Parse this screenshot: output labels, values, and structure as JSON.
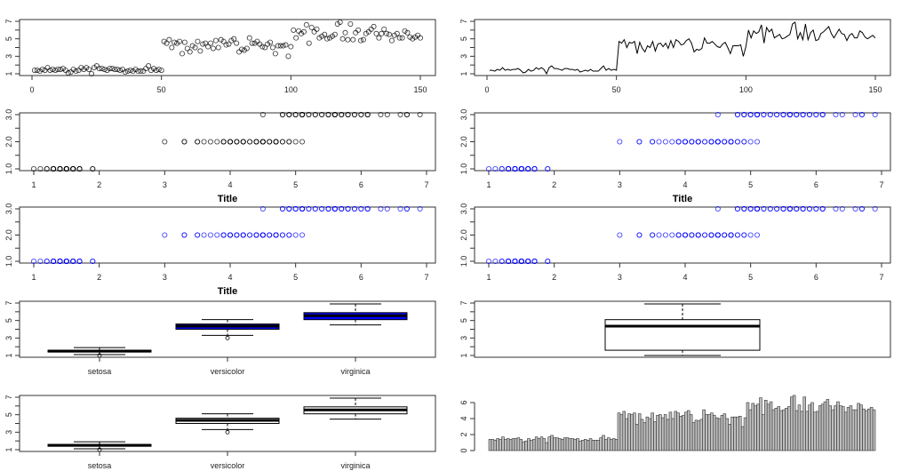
{
  "dataset": {
    "petal_length": [
      1.4,
      1.4,
      1.3,
      1.5,
      1.4,
      1.7,
      1.4,
      1.5,
      1.4,
      1.5,
      1.5,
      1.6,
      1.4,
      1.1,
      1.2,
      1.5,
      1.3,
      1.4,
      1.7,
      1.5,
      1.7,
      1.5,
      1.0,
      1.7,
      1.9,
      1.6,
      1.6,
      1.5,
      1.4,
      1.6,
      1.6,
      1.5,
      1.5,
      1.4,
      1.5,
      1.2,
      1.3,
      1.4,
      1.3,
      1.5,
      1.3,
      1.3,
      1.3,
      1.6,
      1.9,
      1.4,
      1.6,
      1.4,
      1.5,
      1.4,
      4.7,
      4.5,
      4.9,
      4.0,
      4.6,
      4.5,
      4.7,
      3.3,
      4.6,
      3.9,
      3.5,
      4.2,
      4.0,
      4.7,
      3.6,
      4.4,
      4.5,
      4.1,
      4.5,
      3.9,
      4.8,
      4.0,
      4.9,
      4.7,
      4.3,
      4.4,
      4.8,
      5.0,
      4.5,
      3.5,
      3.8,
      3.7,
      3.9,
      5.1,
      4.5,
      4.5,
      4.7,
      4.4,
      4.1,
      4.0,
      4.4,
      4.6,
      4.0,
      3.3,
      4.2,
      4.2,
      4.2,
      4.3,
      3.0,
      4.1,
      6.0,
      5.1,
      5.9,
      5.6,
      5.8,
      6.6,
      4.5,
      6.3,
      5.8,
      6.1,
      5.1,
      5.3,
      5.5,
      5.0,
      5.1,
      5.3,
      5.5,
      6.7,
      6.9,
      5.0,
      5.7,
      4.9,
      6.7,
      4.9,
      5.7,
      6.0,
      4.8,
      4.9,
      5.6,
      5.8,
      6.1,
      6.4,
      5.6,
      5.1,
      5.6,
      6.1,
      5.6,
      5.5,
      4.8,
      5.4,
      5.6,
      5.1,
      5.1,
      5.9,
      5.7,
      5.2,
      5.0,
      5.2,
      5.4,
      5.1
    ],
    "species": [
      "setosa",
      "versicolor",
      "virginica"
    ],
    "group_size": 50
  },
  "colors": {
    "points": "#000000",
    "blue": "#0000ff",
    "bar": "#bebebe"
  },
  "chart_data": [
    {
      "type": "scatter",
      "x": "index",
      "y": "petal_length",
      "xlim": [
        0,
        150
      ],
      "ylim": [
        1,
        7
      ],
      "xticks": [
        0,
        50,
        100,
        150
      ],
      "yticks": [
        1,
        3,
        5,
        7
      ],
      "color": "#000000",
      "title": ""
    },
    {
      "type": "line",
      "x": "index",
      "y": "petal_length",
      "xlim": [
        0,
        150
      ],
      "ylim": [
        1,
        7
      ],
      "xticks": [
        0,
        50,
        100,
        150
      ],
      "yticks": [
        1,
        3,
        5,
        7
      ],
      "color": "#000000",
      "title": ""
    },
    {
      "type": "scatter",
      "x": "petal_length",
      "y": "species_code",
      "xlim": [
        1,
        7
      ],
      "ylim": [
        1,
        3
      ],
      "xticks": [
        1,
        2,
        3,
        4,
        5,
        6,
        7
      ],
      "yticks": [
        "1.0",
        "2.0",
        "3.0"
      ],
      "color": "#000000",
      "title": "Title"
    },
    {
      "type": "scatter",
      "x": "petal_length",
      "y": "species_code",
      "xlim": [
        1,
        7
      ],
      "ylim": [
        1,
        3
      ],
      "xticks": [
        1,
        2,
        3,
        4,
        5,
        6,
        7
      ],
      "yticks": [
        "1.0",
        "2.0",
        "3.0"
      ],
      "color": "#0000ff",
      "title": "Title"
    },
    {
      "type": "scatter",
      "x": "petal_length",
      "y": "species_code",
      "xlim": [
        1,
        7
      ],
      "ylim": [
        1,
        3
      ],
      "xticks": [
        1,
        2,
        3,
        4,
        5,
        6,
        7
      ],
      "yticks": [
        "1.0",
        "2.0",
        "3.0"
      ],
      "color": "#0000ff",
      "title": "Title"
    },
    {
      "type": "scatter",
      "x": "petal_length",
      "y": "species_code",
      "xlim": [
        1,
        7
      ],
      "ylim": [
        1,
        3
      ],
      "xticks": [
        1,
        2,
        3,
        4,
        5,
        6,
        7
      ],
      "yticks": [
        "1.0",
        "2.0",
        "3.0"
      ],
      "color": "#0000ff",
      "title": ""
    },
    {
      "type": "boxplot",
      "grouped": true,
      "categories": [
        "setosa",
        "versicolor",
        "virginica"
      ],
      "ylim": [
        1,
        7
      ],
      "yticks": [
        1,
        3,
        5,
        7
      ],
      "fill": "#0000ff"
    },
    {
      "type": "boxplot",
      "grouped": false,
      "ylim": [
        1,
        7
      ],
      "yticks": [
        1,
        3,
        5,
        7
      ],
      "fill": "#ffffff"
    },
    {
      "type": "boxplot",
      "grouped": true,
      "categories": [
        "setosa",
        "versicolor",
        "virginica"
      ],
      "ylim": [
        1,
        7
      ],
      "yticks": [
        1,
        3,
        5,
        7
      ],
      "fill": "#ffffff"
    },
    {
      "type": "bar",
      "y": "petal_length",
      "ylim": [
        0,
        6.9
      ],
      "yticks": [
        0,
        2,
        4,
        6
      ],
      "color": "#bebebe"
    }
  ]
}
